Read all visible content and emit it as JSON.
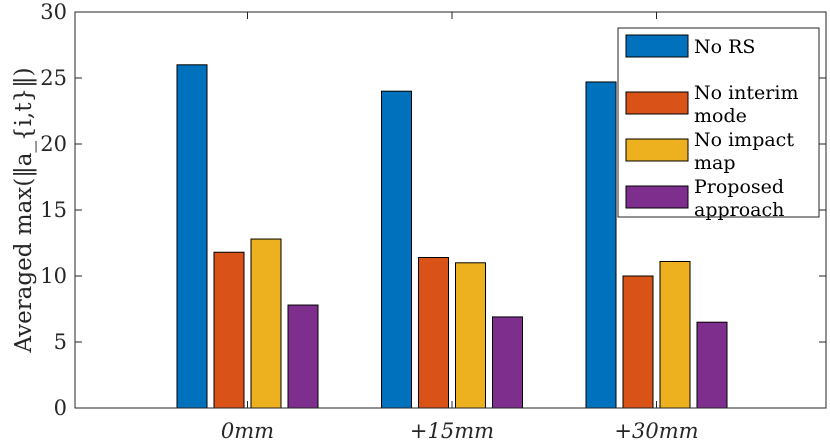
{
  "chart_data": {
    "type": "bar",
    "categories": [
      "0mm",
      "+15mm",
      "+30mm"
    ],
    "series": [
      {
        "name": "No RS",
        "color": "#0072BD",
        "values": [
          26.0,
          24.0,
          24.7
        ]
      },
      {
        "name": "No interim mode",
        "color": "#D95319",
        "values": [
          11.8,
          11.4,
          10.0
        ]
      },
      {
        "name": "No impact map",
        "color": "#EDB120",
        "values": [
          12.8,
          11.0,
          11.1
        ]
      },
      {
        "name": "Proposed approach",
        "color": "#7E2F8E",
        "values": [
          7.8,
          6.9,
          6.5
        ]
      }
    ],
    "title": "",
    "xlabel": "",
    "ylabel": "Averaged max(‖a_{i,t}‖)",
    "ylim": [
      0,
      30
    ],
    "yticks": [
      0,
      5,
      10,
      15,
      20,
      25,
      30
    ],
    "legend_position": "top-right",
    "legend_labels": [
      [
        "No RS"
      ],
      [
        "No interim",
        "mode"
      ],
      [
        "No impact",
        "map"
      ],
      [
        "Proposed",
        "approach"
      ]
    ],
    "grid": false
  }
}
